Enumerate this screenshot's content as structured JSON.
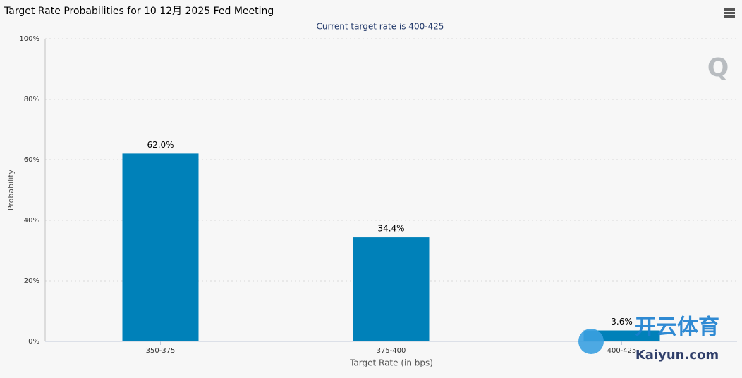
{
  "chart_data": {
    "type": "bar",
    "title": "Target Rate Probabilities for 10 12月 2025 Fed Meeting",
    "subtitle": "Current target rate is 400-425",
    "y_label": "Probability",
    "x_label": "Target Rate (in bps)",
    "categories": [
      "350-375",
      "375-400",
      "400-425"
    ],
    "values": [
      62.0,
      34.4,
      3.6
    ],
    "value_labels": [
      "62.0%",
      "34.4%",
      "3.6%"
    ],
    "color": "#0081b9",
    "ylim": [
      0,
      100
    ],
    "yticks": [
      {
        "value": 0,
        "label": "0%"
      },
      {
        "value": 20,
        "label": "20%"
      },
      {
        "value": 40,
        "label": "40%"
      },
      {
        "value": 60,
        "label": "60%"
      },
      {
        "value": 80,
        "label": "80%"
      },
      {
        "value": 100,
        "label": "100%"
      }
    ],
    "grid": true
  },
  "logo": "Q",
  "watermark": {
    "name": "开云体育",
    "site": "Kaiyun.com"
  }
}
